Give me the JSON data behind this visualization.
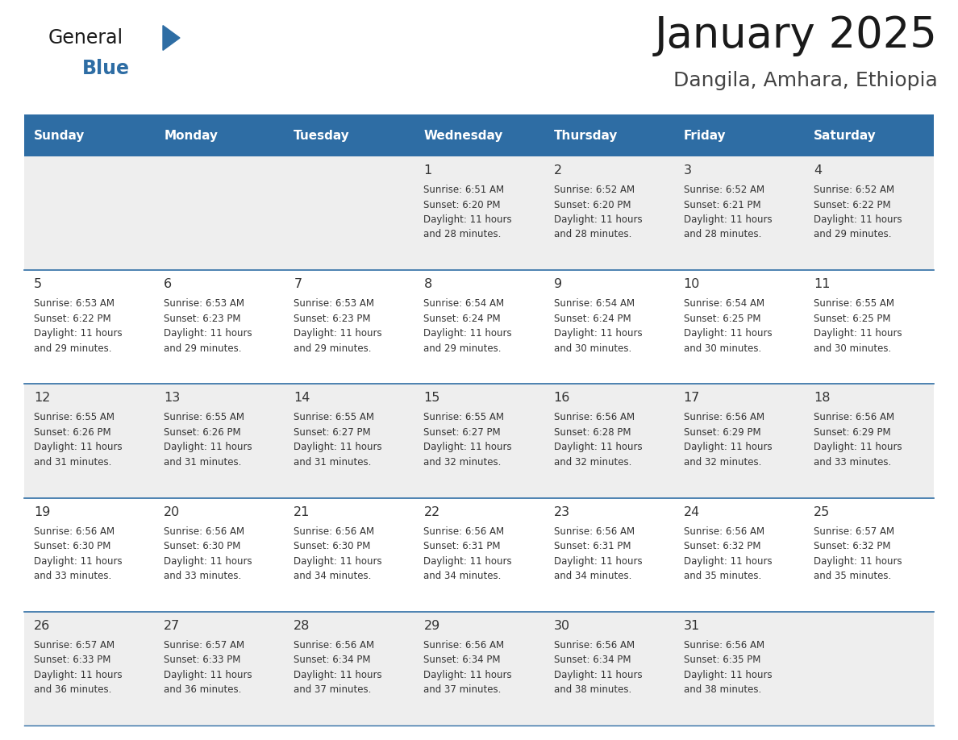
{
  "title": "January 2025",
  "subtitle": "Dangila, Amhara, Ethiopia",
  "header_bg": "#2e6da4",
  "header_text_color": "#ffffff",
  "cell_bg_light": "#eeeeee",
  "cell_bg_white": "#ffffff",
  "divider_color": "#2e6da4",
  "text_color": "#333333",
  "days_of_week": [
    "Sunday",
    "Monday",
    "Tuesday",
    "Wednesday",
    "Thursday",
    "Friday",
    "Saturday"
  ],
  "calendar_data": [
    [
      {
        "day": "",
        "info": ""
      },
      {
        "day": "",
        "info": ""
      },
      {
        "day": "",
        "info": ""
      },
      {
        "day": "1",
        "info": "Sunrise: 6:51 AM\nSunset: 6:20 PM\nDaylight: 11 hours\nand 28 minutes."
      },
      {
        "day": "2",
        "info": "Sunrise: 6:52 AM\nSunset: 6:20 PM\nDaylight: 11 hours\nand 28 minutes."
      },
      {
        "day": "3",
        "info": "Sunrise: 6:52 AM\nSunset: 6:21 PM\nDaylight: 11 hours\nand 28 minutes."
      },
      {
        "day": "4",
        "info": "Sunrise: 6:52 AM\nSunset: 6:22 PM\nDaylight: 11 hours\nand 29 minutes."
      }
    ],
    [
      {
        "day": "5",
        "info": "Sunrise: 6:53 AM\nSunset: 6:22 PM\nDaylight: 11 hours\nand 29 minutes."
      },
      {
        "day": "6",
        "info": "Sunrise: 6:53 AM\nSunset: 6:23 PM\nDaylight: 11 hours\nand 29 minutes."
      },
      {
        "day": "7",
        "info": "Sunrise: 6:53 AM\nSunset: 6:23 PM\nDaylight: 11 hours\nand 29 minutes."
      },
      {
        "day": "8",
        "info": "Sunrise: 6:54 AM\nSunset: 6:24 PM\nDaylight: 11 hours\nand 29 minutes."
      },
      {
        "day": "9",
        "info": "Sunrise: 6:54 AM\nSunset: 6:24 PM\nDaylight: 11 hours\nand 30 minutes."
      },
      {
        "day": "10",
        "info": "Sunrise: 6:54 AM\nSunset: 6:25 PM\nDaylight: 11 hours\nand 30 minutes."
      },
      {
        "day": "11",
        "info": "Sunrise: 6:55 AM\nSunset: 6:25 PM\nDaylight: 11 hours\nand 30 minutes."
      }
    ],
    [
      {
        "day": "12",
        "info": "Sunrise: 6:55 AM\nSunset: 6:26 PM\nDaylight: 11 hours\nand 31 minutes."
      },
      {
        "day": "13",
        "info": "Sunrise: 6:55 AM\nSunset: 6:26 PM\nDaylight: 11 hours\nand 31 minutes."
      },
      {
        "day": "14",
        "info": "Sunrise: 6:55 AM\nSunset: 6:27 PM\nDaylight: 11 hours\nand 31 minutes."
      },
      {
        "day": "15",
        "info": "Sunrise: 6:55 AM\nSunset: 6:27 PM\nDaylight: 11 hours\nand 32 minutes."
      },
      {
        "day": "16",
        "info": "Sunrise: 6:56 AM\nSunset: 6:28 PM\nDaylight: 11 hours\nand 32 minutes."
      },
      {
        "day": "17",
        "info": "Sunrise: 6:56 AM\nSunset: 6:29 PM\nDaylight: 11 hours\nand 32 minutes."
      },
      {
        "day": "18",
        "info": "Sunrise: 6:56 AM\nSunset: 6:29 PM\nDaylight: 11 hours\nand 33 minutes."
      }
    ],
    [
      {
        "day": "19",
        "info": "Sunrise: 6:56 AM\nSunset: 6:30 PM\nDaylight: 11 hours\nand 33 minutes."
      },
      {
        "day": "20",
        "info": "Sunrise: 6:56 AM\nSunset: 6:30 PM\nDaylight: 11 hours\nand 33 minutes."
      },
      {
        "day": "21",
        "info": "Sunrise: 6:56 AM\nSunset: 6:30 PM\nDaylight: 11 hours\nand 34 minutes."
      },
      {
        "day": "22",
        "info": "Sunrise: 6:56 AM\nSunset: 6:31 PM\nDaylight: 11 hours\nand 34 minutes."
      },
      {
        "day": "23",
        "info": "Sunrise: 6:56 AM\nSunset: 6:31 PM\nDaylight: 11 hours\nand 34 minutes."
      },
      {
        "day": "24",
        "info": "Sunrise: 6:56 AM\nSunset: 6:32 PM\nDaylight: 11 hours\nand 35 minutes."
      },
      {
        "day": "25",
        "info": "Sunrise: 6:57 AM\nSunset: 6:32 PM\nDaylight: 11 hours\nand 35 minutes."
      }
    ],
    [
      {
        "day": "26",
        "info": "Sunrise: 6:57 AM\nSunset: 6:33 PM\nDaylight: 11 hours\nand 36 minutes."
      },
      {
        "day": "27",
        "info": "Sunrise: 6:57 AM\nSunset: 6:33 PM\nDaylight: 11 hours\nand 36 minutes."
      },
      {
        "day": "28",
        "info": "Sunrise: 6:56 AM\nSunset: 6:34 PM\nDaylight: 11 hours\nand 37 minutes."
      },
      {
        "day": "29",
        "info": "Sunrise: 6:56 AM\nSunset: 6:34 PM\nDaylight: 11 hours\nand 37 minutes."
      },
      {
        "day": "30",
        "info": "Sunrise: 6:56 AM\nSunset: 6:34 PM\nDaylight: 11 hours\nand 38 minutes."
      },
      {
        "day": "31",
        "info": "Sunrise: 6:56 AM\nSunset: 6:35 PM\nDaylight: 11 hours\nand 38 minutes."
      },
      {
        "day": "",
        "info": ""
      }
    ]
  ],
  "fig_width": 11.88,
  "fig_height": 9.18,
  "dpi": 100
}
